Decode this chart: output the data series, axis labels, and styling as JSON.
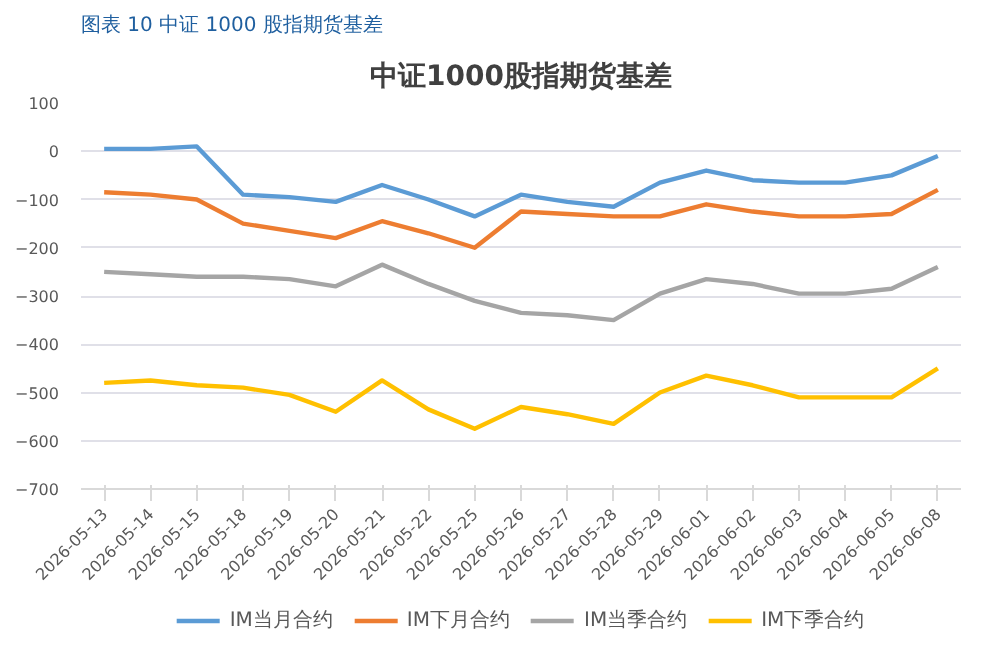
{
  "chart_data": {
    "type": "line",
    "title": "中证1000股指期货基差",
    "subtitle": "图表 10  中证 1000 股指期货基差",
    "categories": [
      "2026-05-13",
      "2026-05-14",
      "2026-05-15",
      "2026-05-18",
      "2026-05-19",
      "2026-05-20",
      "2026-05-21",
      "2026-05-22",
      "2026-05-25",
      "2026-05-26",
      "2026-05-27",
      "2026-05-28",
      "2026-05-29",
      "2026-06-01",
      "2026-06-02",
      "2026-06-03",
      "2026-06-04",
      "2026-06-05",
      "2026-06-08"
    ],
    "series": [
      {
        "name": "IM当月合约",
        "color": "#5b9bd5",
        "values": [
          5,
          5,
          10,
          -90,
          -95,
          -105,
          -70,
          -100,
          -135,
          -90,
          -105,
          -115,
          -65,
          -40,
          -60,
          -65,
          -65,
          -50,
          -10
        ]
      },
      {
        "name": "IM下月合约",
        "color": "#ed7d31",
        "values": [
          -85,
          -90,
          -100,
          -150,
          -165,
          -180,
          -145,
          -170,
          -200,
          -125,
          -130,
          -135,
          -135,
          -110,
          -125,
          -135,
          -135,
          -130,
          -80
        ]
      },
      {
        "name": "IM当季合约",
        "color": "#a5a5a5",
        "values": [
          -250,
          -255,
          -260,
          -260,
          -265,
          -280,
          -235,
          -275,
          -310,
          -335,
          -340,
          -350,
          -295,
          -265,
          -275,
          -295,
          -295,
          -285,
          -240
        ]
      },
      {
        "name": "IM下季合约",
        "color": "#ffc000",
        "values": [
          -480,
          -475,
          -485,
          -490,
          -505,
          -540,
          -475,
          -535,
          -575,
          -530,
          -545,
          -565,
          -500,
          -465,
          -485,
          -510,
          -510,
          -510,
          -450
        ]
      }
    ],
    "ylim": [
      -700,
      100
    ],
    "yticks": [
      -700,
      -600,
      -500,
      -400,
      -300,
      -200,
      -100,
      0,
      100
    ],
    "grid": "y",
    "legend": "bottom",
    "marker": "none",
    "line_style": "solid"
  }
}
